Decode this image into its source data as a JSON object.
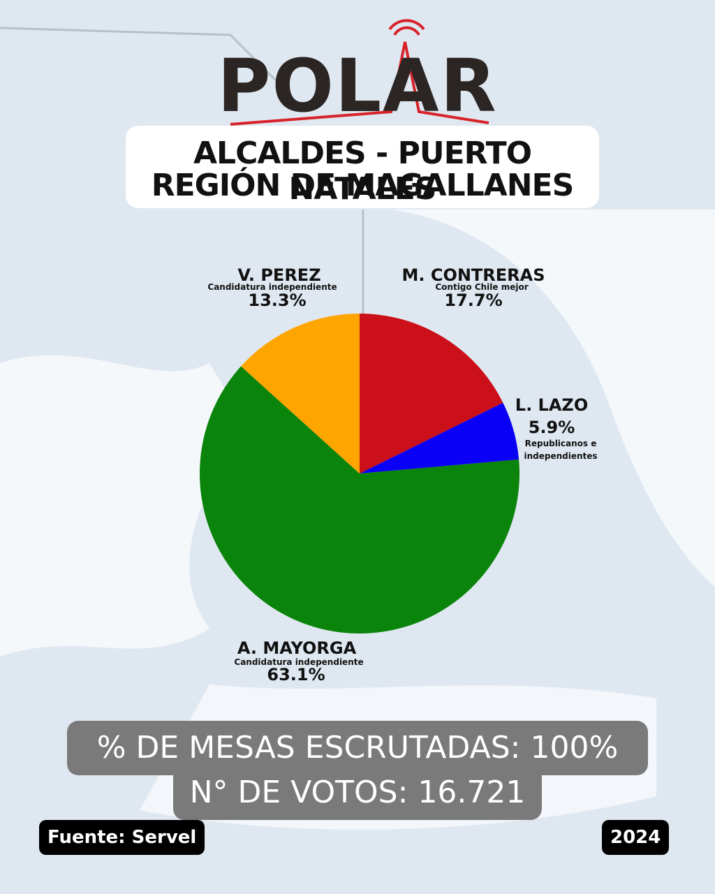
{
  "logo": "POLAR",
  "chart_data": {
    "type": "pie",
    "title": "ALCALDES - PUERTO NATALES",
    "subtitle": "REGIÓN DE MAGALLANES",
    "categories": [
      "M. CONTRERAS",
      "L. LAZO",
      "A. MAYORGA",
      "V. PEREZ"
    ],
    "descriptions": [
      "Contigo Chile mejor",
      "Republicanos e independientes",
      "Candidatura independiente",
      "Candidatura independiente"
    ],
    "values": [
      17.7,
      5.9,
      63.1,
      13.3
    ],
    "value_labels": [
      "17.7%",
      "5.9%",
      "63.1%",
      "13.3%"
    ],
    "colors": [
      "#cc1019",
      "#0a00f5",
      "#0b840b",
      "#ffa500"
    ]
  },
  "stats": [
    "% DE MESAS ESCRUTADAS: 100%",
    "N° DE VOTOS:  16.721"
  ],
  "source": "Fuente: Servel",
  "year": "2024"
}
